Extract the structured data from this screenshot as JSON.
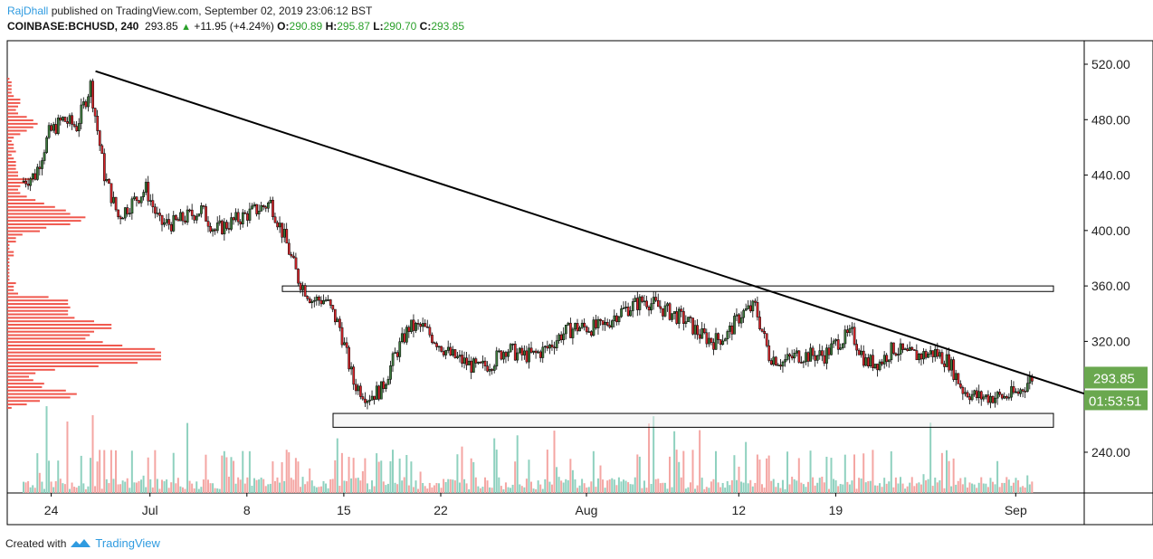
{
  "header": {
    "author": "RajDhall",
    "published": "published on TradingView.com, September 02, 2019 23:06:12 BST",
    "symbol": "COINBASE:BCHUSD, 240",
    "last": "293.85",
    "change": "+11.95 (+4.24%)",
    "o_label": "O:",
    "o": "290.89",
    "h_label": "H:",
    "h": "295.87",
    "l_label": "L:",
    "l": "290.70",
    "c_label": "C:",
    "c": "293.85"
  },
  "price_badge": "293.85",
  "countdown": "01:53:51",
  "footer": {
    "created_with": "Created with",
    "brand": "TradingView"
  },
  "colors": {
    "up": "#3d7a3d",
    "down": "#d9262b",
    "badge": "#6aa84f",
    "vol_up": "#8fd1bf",
    "vol_down": "#f4a6a3",
    "profile": "#f0584e"
  },
  "chart_data": {
    "type": "candlestick",
    "timeframe": "240",
    "y_ticks": [
      "520.00",
      "480.00",
      "440.00",
      "400.00",
      "360.00",
      "320.00",
      "240.00"
    ],
    "ylim": [
      215,
      540
    ],
    "x_ticks": [
      {
        "label": "24",
        "day": 2
      },
      {
        "label": "Jul",
        "day": 9
      },
      {
        "label": "8",
        "day": 16
      },
      {
        "label": "15",
        "day": 23
      },
      {
        "label": "22",
        "day": 30
      },
      {
        "label": "Aug",
        "day": 40
      },
      {
        "label": "12",
        "day": 51
      },
      {
        "label": "19",
        "day": 58
      },
      {
        "label": "Sep",
        "day": 71
      }
    ],
    "start_date": "2019-06-22",
    "daily_close": [
      440,
      470,
      480,
      475,
      505,
      440,
      410,
      420,
      430,
      405,
      405,
      410,
      415,
      400,
      405,
      410,
      415,
      420,
      395,
      365,
      350,
      350,
      330,
      290,
      280,
      285,
      310,
      330,
      330,
      320,
      310,
      305,
      300,
      305,
      315,
      310,
      310,
      315,
      325,
      330,
      330,
      330,
      340,
      345,
      350,
      345,
      340,
      335,
      325,
      320,
      325,
      340,
      345,
      310,
      305,
      310,
      310,
      310,
      320,
      325,
      305,
      305,
      315,
      310,
      310,
      312,
      305,
      285,
      280,
      280,
      280,
      283,
      294
    ],
    "trendline": {
      "from": {
        "day": 5.2,
        "price": 515
      },
      "to": {
        "day": 77,
        "price": 281
      }
    },
    "resistance_zone": [
      356,
      360
    ],
    "support_zone": [
      258,
      268
    ]
  }
}
